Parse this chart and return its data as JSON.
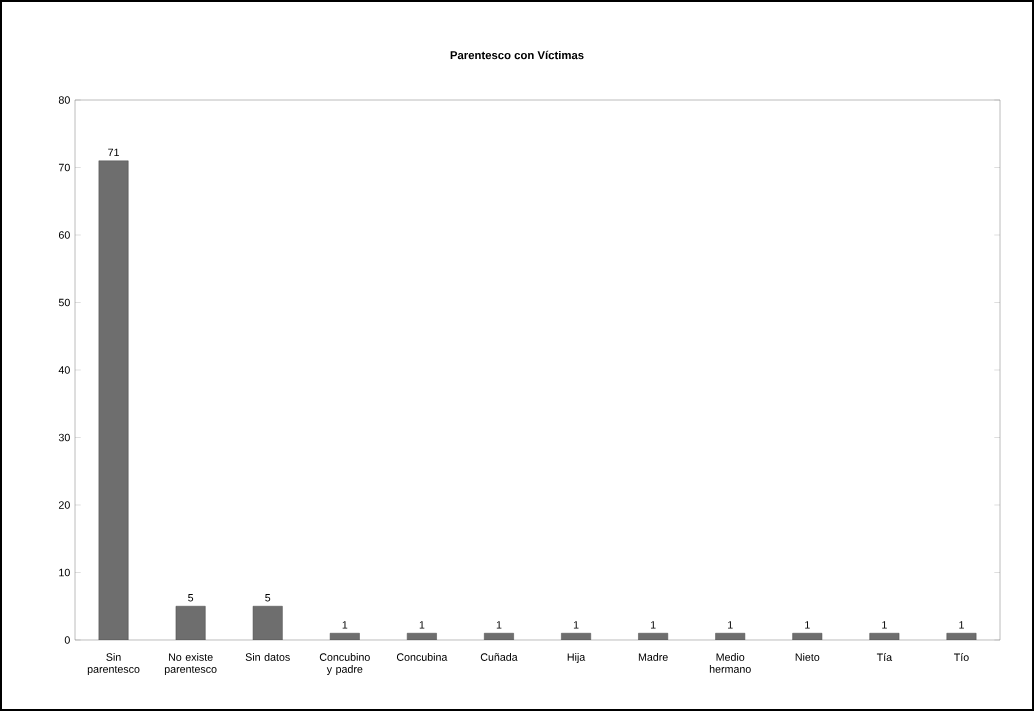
{
  "chart_data": {
    "type": "bar",
    "title": "Parentesco con Víctimas",
    "categories": [
      "Sin parentesco",
      "No existe parentesco",
      "Sin datos",
      "Concubino y padre",
      "Concubina",
      "Cuñada",
      "Hija",
      "Madre",
      "Medio hermano",
      "Nieto",
      "Tía",
      "Tío"
    ],
    "values": [
      71,
      5,
      5,
      1,
      1,
      1,
      1,
      1,
      1,
      1,
      1,
      1
    ],
    "color": "#6e6e6e",
    "ylim": [
      0,
      80
    ],
    "yticks": [
      0,
      10,
      20,
      30,
      40,
      50,
      60,
      70,
      80
    ],
    "data_labels": true
  }
}
